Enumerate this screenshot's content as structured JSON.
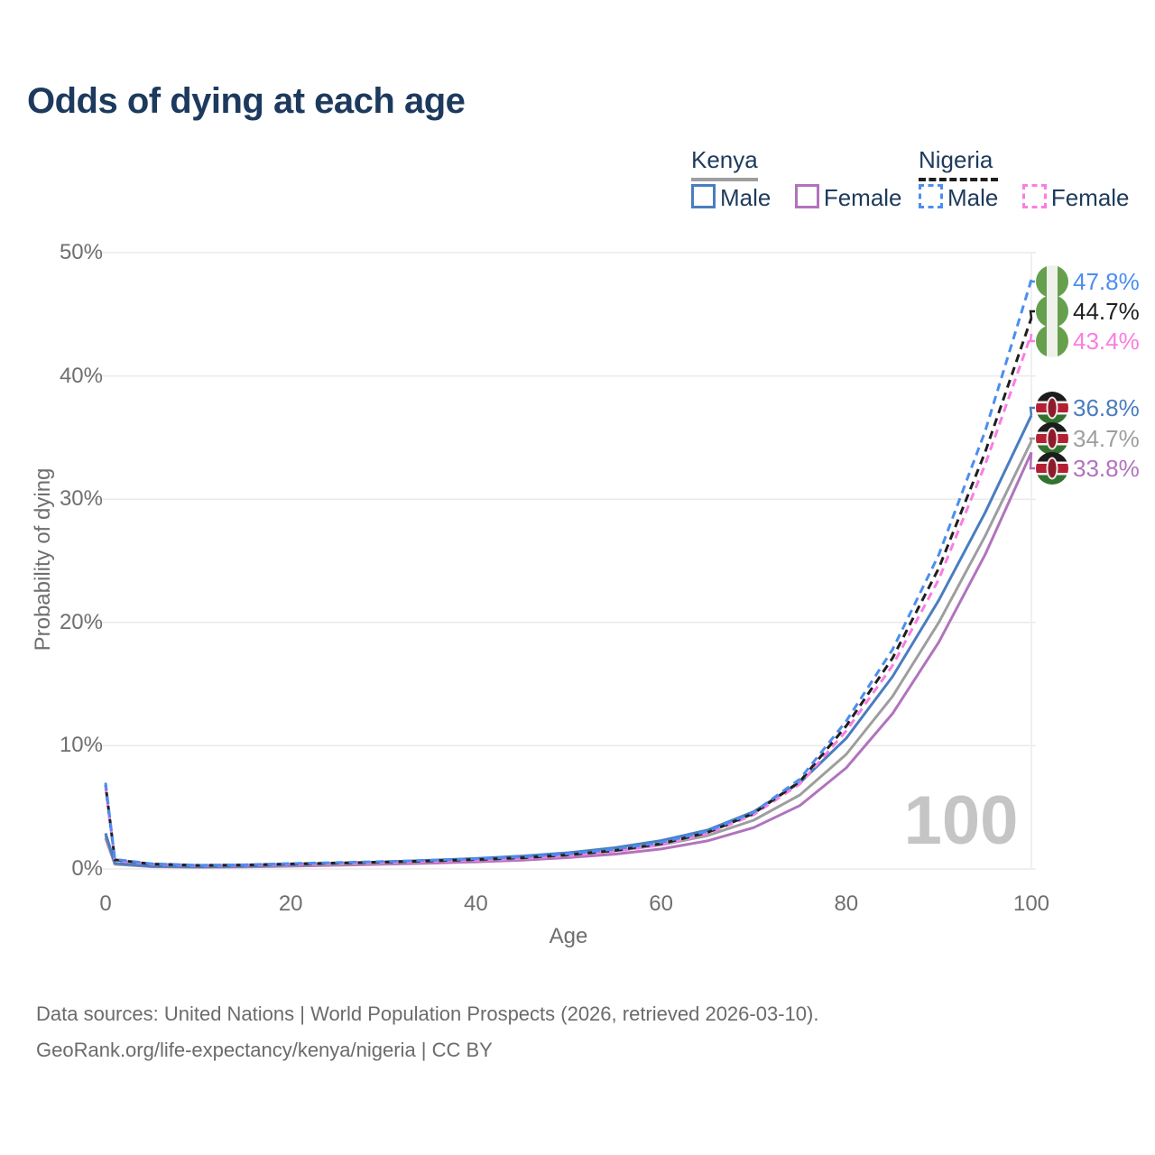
{
  "title": "Odds of dying at each age",
  "legend": {
    "groups": [
      {
        "name": "Kenya",
        "line_style": "solid",
        "underline_color": "#9e9e9e",
        "items": [
          {
            "label": "Male",
            "color": "#4a7dbf"
          },
          {
            "label": "Female",
            "color": "#b173bd"
          }
        ]
      },
      {
        "name": "Nigeria",
        "line_style": "dashed",
        "underline_color": "#1f1f1f",
        "items": [
          {
            "label": "Male",
            "color": "#4b8ef0"
          },
          {
            "label": "Female",
            "color": "#fa7de2"
          }
        ]
      }
    ]
  },
  "watermark": "100",
  "footer": {
    "line1": "Data sources: United Nations | World Population Prospects (2026, retrieved 2026-03-10).",
    "line2": "GeoRank.org/life-expectancy/kenya/nigeria | CC BY"
  },
  "chart_data": {
    "type": "line",
    "title": "Odds of dying at each age",
    "xlabel": "Age",
    "ylabel": "Probability of dying",
    "xlim": [
      0,
      100
    ],
    "ylim": [
      0,
      50
    ],
    "xticks": [
      0,
      20,
      40,
      60,
      80,
      100
    ],
    "yticks": [
      {
        "value": 0,
        "label": "0%"
      },
      {
        "value": 10,
        "label": "10%"
      },
      {
        "value": 20,
        "label": "20%"
      },
      {
        "value": 30,
        "label": "30%"
      },
      {
        "value": 40,
        "label": "40%"
      },
      {
        "value": 50,
        "label": "50%"
      }
    ],
    "grid": "horizontal",
    "hovered_age": 100,
    "ages": [
      0,
      1,
      5,
      10,
      15,
      20,
      25,
      30,
      35,
      40,
      45,
      50,
      55,
      60,
      65,
      70,
      75,
      80,
      85,
      90,
      95,
      100
    ],
    "series": [
      {
        "name": "Nigeria Male",
        "country": "Nigeria",
        "sex": "Male",
        "style": "dashed",
        "color": "#4b8ef0",
        "flag": "nigeria",
        "end_label": "47.8%",
        "values": [
          7.0,
          0.78,
          0.42,
          0.3,
          0.34,
          0.44,
          0.52,
          0.6,
          0.7,
          0.82,
          0.98,
          1.22,
          1.6,
          2.15,
          3.05,
          4.6,
          7.3,
          12.0,
          17.8,
          25.5,
          35.5,
          47.8
        ]
      },
      {
        "name": "Nigeria Both sexes",
        "country": "Nigeria",
        "sex": "Both",
        "style": "dashed",
        "color": "#1f1f1f",
        "flag": "nigeria",
        "end_label": "44.7%",
        "values": [
          6.8,
          0.74,
          0.4,
          0.29,
          0.32,
          0.41,
          0.48,
          0.56,
          0.65,
          0.76,
          0.91,
          1.14,
          1.5,
          2.05,
          2.95,
          4.5,
          7.1,
          11.6,
          17.1,
          24.4,
          33.8,
          44.7
        ]
      },
      {
        "name": "Nigeria Female",
        "country": "Nigeria",
        "sex": "Female",
        "style": "dashed",
        "color": "#fa7de2",
        "flag": "nigeria",
        "end_label": "43.4%",
        "values": [
          6.6,
          0.7,
          0.38,
          0.27,
          0.3,
          0.38,
          0.45,
          0.52,
          0.6,
          0.7,
          0.85,
          1.07,
          1.42,
          1.95,
          2.85,
          4.4,
          6.9,
          11.2,
          16.5,
          23.5,
          32.8,
          43.4
        ]
      },
      {
        "name": "Kenya Male",
        "country": "Kenya",
        "sex": "Male",
        "style": "solid",
        "color": "#4a7dbf",
        "flag": "kenya",
        "end_label": "36.8%",
        "values": [
          2.9,
          0.46,
          0.22,
          0.18,
          0.23,
          0.34,
          0.46,
          0.57,
          0.7,
          0.85,
          1.05,
          1.32,
          1.72,
          2.3,
          3.15,
          4.65,
          7.0,
          10.6,
          15.6,
          21.8,
          28.9,
          36.8
        ]
      },
      {
        "name": "Kenya Both sexes",
        "country": "Kenya",
        "sex": "Both",
        "style": "solid",
        "color": "#9e9e9e",
        "flag": "kenya",
        "end_label": "34.7%",
        "values": [
          2.7,
          0.42,
          0.2,
          0.16,
          0.2,
          0.29,
          0.38,
          0.48,
          0.59,
          0.72,
          0.89,
          1.12,
          1.45,
          1.95,
          2.7,
          3.95,
          6.0,
          9.3,
          14.0,
          20.0,
          27.0,
          34.7
        ]
      },
      {
        "name": "Kenya Female",
        "country": "Kenya",
        "sex": "Female",
        "style": "solid",
        "color": "#b173bd",
        "flag": "kenya",
        "end_label": "33.8%",
        "values": [
          2.5,
          0.38,
          0.18,
          0.14,
          0.17,
          0.23,
          0.3,
          0.38,
          0.47,
          0.58,
          0.72,
          0.92,
          1.2,
          1.62,
          2.28,
          3.35,
          5.15,
          8.2,
          12.6,
          18.4,
          25.5,
          33.8
        ]
      }
    ]
  }
}
